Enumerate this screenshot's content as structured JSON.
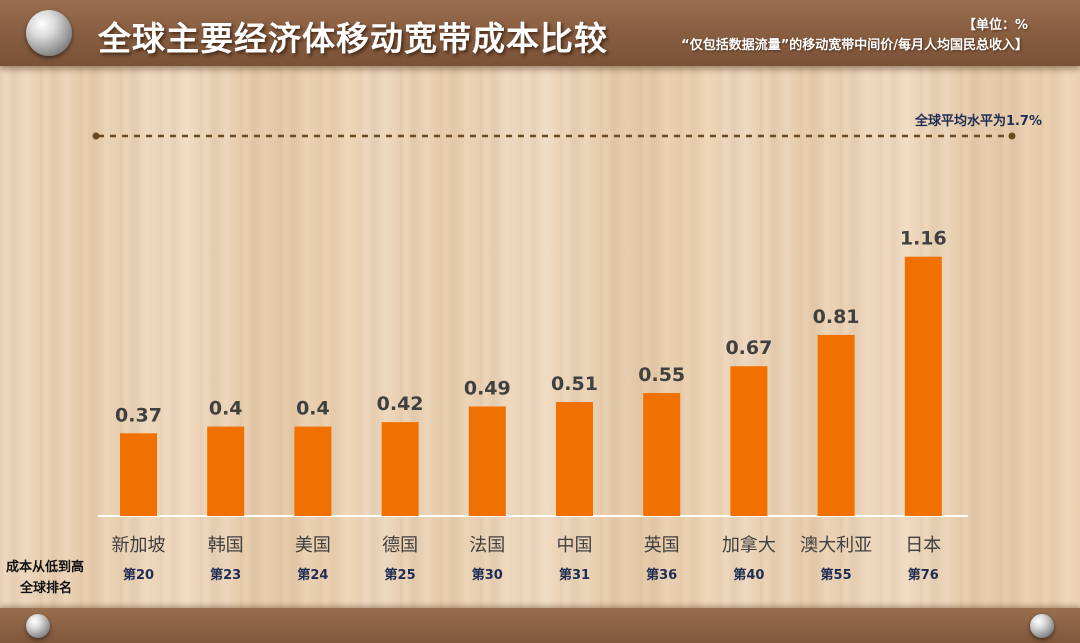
{
  "title": "全球主要经济体移动宽带成本比较",
  "unit_note": {
    "line1": "【单位：%",
    "line2": "“仅包括数据流量”的移动宽带中间价/每月人均国民总收入】"
  },
  "average_label": "全球平均水平为1.7%",
  "row_labels": {
    "cost_order": "成本从低到高",
    "global_rank": "全球排名"
  },
  "colors": {
    "bar": "#f07000",
    "value_text": "#404040",
    "category_text": "#404040",
    "rank_text": "#1f2d55",
    "average_line": "#6b4a22"
  },
  "chart_data": {
    "type": "bar",
    "title": "全球主要经济体移动宽带成本比较",
    "categories": [
      "新加坡",
      "韩国",
      "美国",
      "德国",
      "法国",
      "中国",
      "英国",
      "加拿大",
      "澳大利亚",
      "日本"
    ],
    "values": [
      0.37,
      0.4,
      0.4,
      0.42,
      0.49,
      0.51,
      0.55,
      0.67,
      0.81,
      1.16
    ],
    "value_labels": [
      "0.37",
      "0.4",
      "0.4",
      "0.42",
      "0.49",
      "0.51",
      "0.55",
      "0.67",
      "0.81",
      "1.16"
    ],
    "ranks": [
      "第20",
      "第23",
      "第24",
      "第25",
      "第30",
      "第31",
      "第36",
      "第40",
      "第55",
      "第76"
    ],
    "reference_line": {
      "label": "全球平均水平为1.7%",
      "value": 1.7
    },
    "xlabel": "",
    "ylabel": "",
    "ylim": [
      0,
      1.7
    ],
    "grid": false,
    "legend": "none"
  }
}
